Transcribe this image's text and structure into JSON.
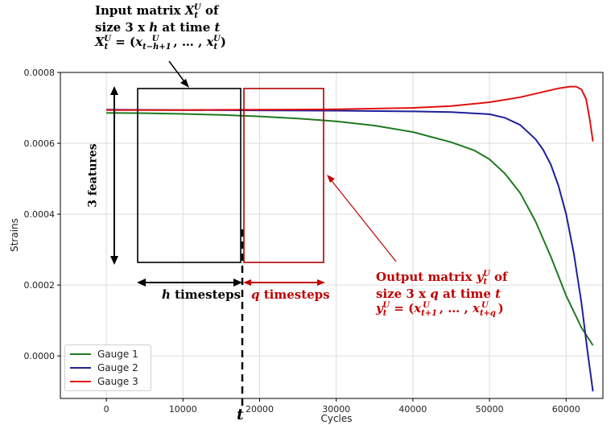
{
  "chart_data": {
    "type": "line",
    "xlabel": "Cycles",
    "ylabel": "Strains",
    "xlim": [
      -6000,
      64800
    ],
    "ylim": [
      -0.00012,
      0.0008
    ],
    "x_ticks": [
      0,
      10000,
      20000,
      30000,
      40000,
      50000,
      60000
    ],
    "x_tick_labels": [
      "0",
      "10000",
      "20000",
      "30000",
      "40000",
      "50000",
      "60000"
    ],
    "y_ticks": [
      0.0,
      0.0002,
      0.0004,
      0.0006,
      0.0008
    ],
    "y_tick_labels": [
      "0.0000",
      "0.0002",
      "0.0004",
      "0.0006",
      "0.0008"
    ],
    "grid": true,
    "legend_position": "bottom-left",
    "series": [
      {
        "name": "Gauge 1",
        "color": "#1e7a1e",
        "x": [
          0,
          5000,
          10000,
          15000,
          20000,
          25000,
          30000,
          35000,
          40000,
          45000,
          48000,
          50000,
          52000,
          54000,
          56000,
          58000,
          60000,
          62000,
          63500
        ],
        "y": [
          0.000686,
          0.000685,
          0.000683,
          0.00068,
          0.000676,
          0.00067,
          0.000662,
          0.00065,
          0.000632,
          0.000603,
          0.00058,
          0.000555,
          0.000515,
          0.00046,
          0.00038,
          0.00028,
          0.00017,
          8e-05,
          3e-05
        ]
      },
      {
        "name": "Gauge 2",
        "color": "#1f1f99",
        "x": [
          0,
          10000,
          20000,
          30000,
          40000,
          45000,
          50000,
          52000,
          54000,
          56000,
          57000,
          58000,
          59000,
          60000,
          61000,
          62000,
          62800,
          63500
        ],
        "y": [
          0.000695,
          0.000694,
          0.000693,
          0.000692,
          0.00069,
          0.000688,
          0.000682,
          0.000672,
          0.000652,
          0.000612,
          0.000582,
          0.00054,
          0.00048,
          0.0004,
          0.00029,
          0.00015,
          1e-05,
          -0.0001
        ]
      },
      {
        "name": "Gauge 3",
        "color": "#e01010",
        "x": [
          0,
          10000,
          20000,
          30000,
          40000,
          45000,
          50000,
          54000,
          57000,
          59000,
          60500,
          61300,
          62000,
          62600,
          63100,
          63500
        ],
        "y": [
          0.000694,
          0.000694,
          0.000695,
          0.000696,
          0.0007,
          0.000705,
          0.000716,
          0.00073,
          0.000745,
          0.000755,
          0.00076,
          0.00076,
          0.000752,
          0.000725,
          0.000665,
          0.000605
        ]
      }
    ],
    "annotations": {
      "input_label": "Input matrix X_t^U of size 3 x h at time t",
      "output_label": "Output matrix y_t^U of size 3 x q at time t",
      "features_label": "3 features",
      "h_label": "h timesteps",
      "q_label": "q timesteps",
      "t_label": "t"
    }
  },
  "text": {
    "input_line1_pre": "Input matrix ",
    "input_sym": "X",
    "input_sup": "U",
    "input_sub": "t",
    "input_line1_post": " of",
    "input_line2_pre": "size 3 x ",
    "input_line2_h": "h",
    "input_line2_post": " at time ",
    "input_line2_t": "t",
    "input_line3_eq": " = (",
    "input_line3_sub1": "t−h+1",
    "input_line3_mid": ", … , ",
    "input_line3_close": ")",
    "output_line1_pre": "Output matrix ",
    "output_sym": "y",
    "output_sup": "U",
    "output_sub": "t",
    "output_line1_post": " of",
    "output_line2_pre": "size 3 x ",
    "output_line2_q": "q",
    "output_line2_post": " at time ",
    "output_line2_t": "t",
    "output_line3_eq": " = (",
    "output_line3_x": "x",
    "output_line3_sub1": "t+1",
    "output_line3_mid": ", … , ",
    "output_line3_sub2": "t+q",
    "output_line3_close": ")",
    "features": "3 features",
    "h_italic": "h",
    "h_rest": " timesteps",
    "q_italic": "q",
    "q_rest": " timesteps",
    "t": "t"
  }
}
